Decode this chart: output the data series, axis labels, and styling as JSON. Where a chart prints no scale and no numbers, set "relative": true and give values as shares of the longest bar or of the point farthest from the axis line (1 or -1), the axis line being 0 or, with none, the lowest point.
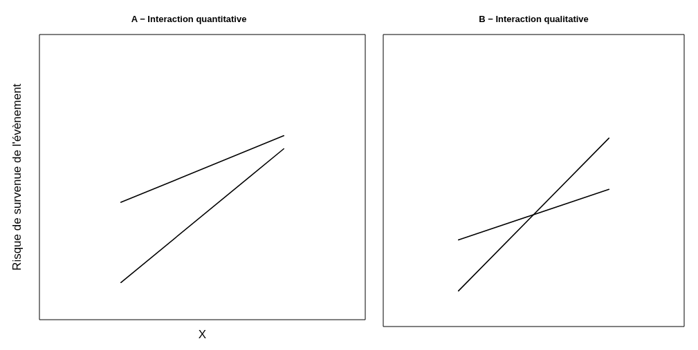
{
  "chart_data": [
    {
      "type": "line",
      "title": "A − Interaction quantitative",
      "xlabel": "X",
      "ylabel": "Risque de survenue de l'évènement",
      "relative": true,
      "categories": [
        null,
        null
      ],
      "marker": "none",
      "line_style": "solid",
      "series": [
        {
          "color": "#000000",
          "values": [
            0.638,
            1
          ]
        },
        {
          "color": "#000000",
          "values": [
            0.202,
            0.929
          ]
        }
      ]
    },
    {
      "type": "line",
      "title": "B − Interaction qualitative",
      "relative": true,
      "categories": [
        null,
        null
      ],
      "marker": "none",
      "line_style": "solid",
      "series": [
        {
          "color": "#000000",
          "values": [
            0.46,
            0.728
          ]
        },
        {
          "color": "#000000",
          "values": [
            0.189,
            1
          ]
        }
      ]
    }
  ]
}
